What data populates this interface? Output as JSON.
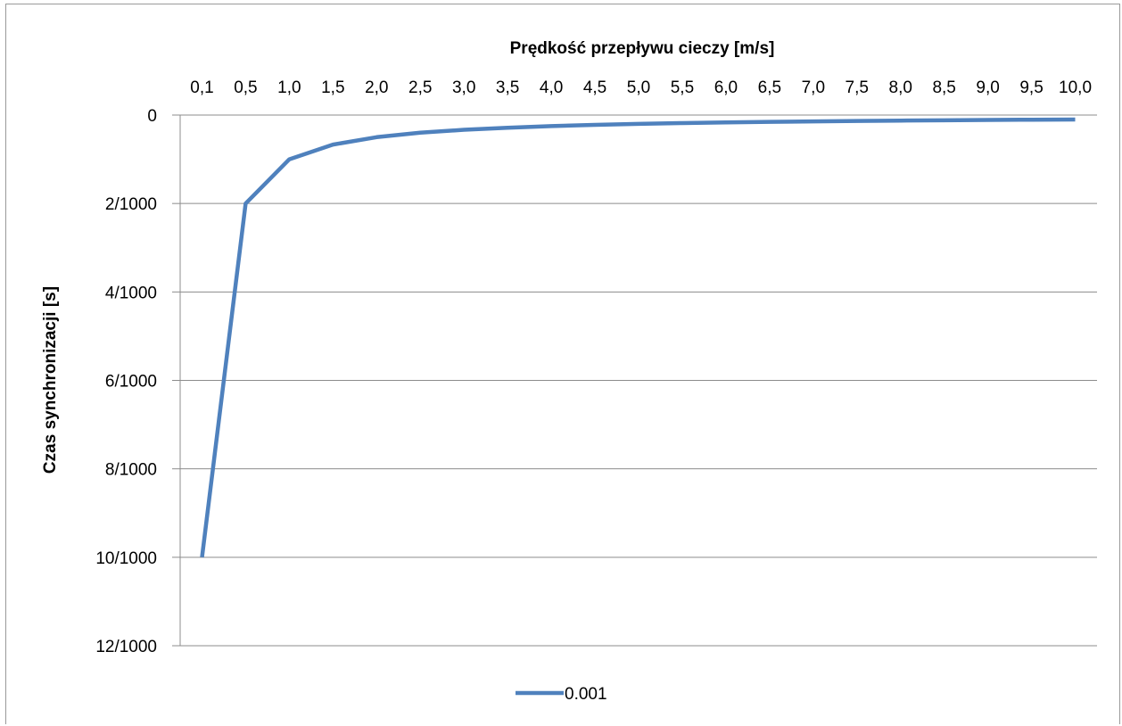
{
  "chart_data": {
    "type": "line",
    "xlabel": "Prędkość przepływu cieczy [m/s]",
    "ylabel": "Czas synchronizacji [s]",
    "x_axis_position": "top",
    "y_axis_inverted": true,
    "ylim": [
      0,
      0.012
    ],
    "y_ticks": [
      {
        "value": 0,
        "label": "0"
      },
      {
        "value": 0.002,
        "label": "2/1000"
      },
      {
        "value": 0.004,
        "label": "4/1000"
      },
      {
        "value": 0.006,
        "label": "6/1000"
      },
      {
        "value": 0.008,
        "label": "8/1000"
      },
      {
        "value": 0.01,
        "label": "10/1000"
      },
      {
        "value": 0.012,
        "label": "12/1000"
      }
    ],
    "categories": [
      "0,1",
      "0,5",
      "1,0",
      "1,5",
      "2,0",
      "2,5",
      "3,0",
      "3,5",
      "4,0",
      "4,5",
      "5,0",
      "5,5",
      "6,0",
      "6,5",
      "7,0",
      "7,5",
      "8,0",
      "8,5",
      "9,0",
      "9,5",
      "10,0"
    ],
    "grid": true,
    "legend_position": "bottom",
    "series": [
      {
        "name": "0.001",
        "color": "#4f81bd",
        "values": [
          0.01,
          0.002,
          0.001,
          0.000667,
          0.0005,
          0.0004,
          0.000333,
          0.000286,
          0.00025,
          0.000222,
          0.0002,
          0.000182,
          0.000167,
          0.000154,
          0.000143,
          0.000133,
          0.000125,
          0.000118,
          0.000111,
          0.000105,
          0.0001
        ]
      }
    ]
  }
}
